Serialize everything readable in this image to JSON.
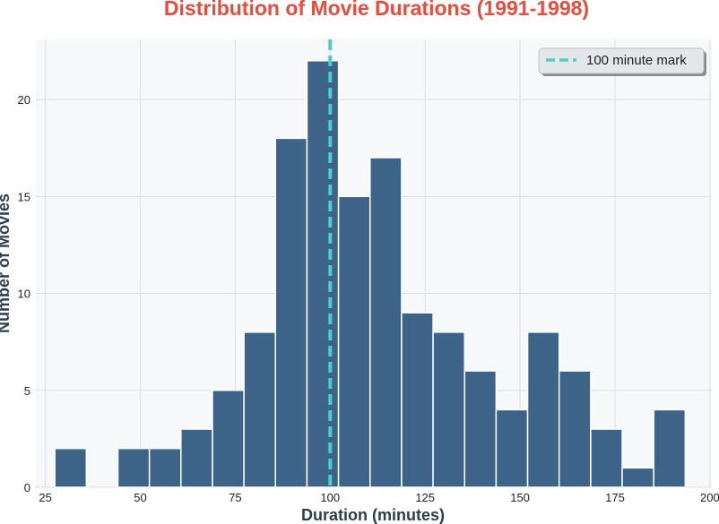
{
  "chart_data": {
    "type": "bar",
    "title": "Distribution of Movie Durations (1991-1998)",
    "xlabel": "Duration (minutes)",
    "ylabel": "Number of Movies",
    "xlim": [
      22.5,
      200.5
    ],
    "ylim": [
      0,
      23.1
    ],
    "x_ticks": [
      25,
      50,
      75,
      100,
      125,
      150,
      175,
      200
    ],
    "y_ticks": [
      0,
      5,
      10,
      15,
      20
    ],
    "x_tick_labels": [
      "25",
      "50",
      "75",
      "100",
      "125",
      "150",
      "175",
      "200"
    ],
    "y_tick_labels": [
      "0",
      "5",
      "10",
      "15",
      "20"
    ],
    "bin_width": 8.3,
    "bins": [
      {
        "start": 27.5,
        "end": 35.8,
        "count": 2
      },
      {
        "start": 35.8,
        "end": 44.1,
        "count": 0
      },
      {
        "start": 44.1,
        "end": 52.4,
        "count": 2
      },
      {
        "start": 52.4,
        "end": 60.7,
        "count": 2
      },
      {
        "start": 60.7,
        "end": 69.0,
        "count": 3
      },
      {
        "start": 69.0,
        "end": 77.3,
        "count": 5
      },
      {
        "start": 77.3,
        "end": 85.6,
        "count": 8
      },
      {
        "start": 85.6,
        "end": 93.9,
        "count": 18
      },
      {
        "start": 93.9,
        "end": 102.2,
        "count": 22
      },
      {
        "start": 102.2,
        "end": 110.5,
        "count": 15
      },
      {
        "start": 110.5,
        "end": 118.8,
        "count": 17
      },
      {
        "start": 118.8,
        "end": 127.1,
        "count": 9
      },
      {
        "start": 127.1,
        "end": 135.4,
        "count": 8
      },
      {
        "start": 135.4,
        "end": 143.7,
        "count": 6
      },
      {
        "start": 143.7,
        "end": 152.0,
        "count": 4
      },
      {
        "start": 152.0,
        "end": 160.3,
        "count": 8
      },
      {
        "start": 160.3,
        "end": 168.6,
        "count": 6
      },
      {
        "start": 168.6,
        "end": 176.9,
        "count": 3
      },
      {
        "start": 176.9,
        "end": 185.2,
        "count": 1
      },
      {
        "start": 185.2,
        "end": 193.5,
        "count": 4
      }
    ],
    "reference_line": {
      "x": 100,
      "label": "100 minute mark",
      "style": "dashed"
    },
    "grid": true,
    "legend_position": "top-right",
    "colors": {
      "title": "#e74c3c",
      "bar": "#3d6488",
      "bar_edge": "#ffffff",
      "reference_line": "#4ecdc4",
      "plot_bg": "#f7f8fa",
      "grid": "#dcdee2",
      "axis_label": "#2c3e50",
      "tick_label": "#222222"
    }
  }
}
